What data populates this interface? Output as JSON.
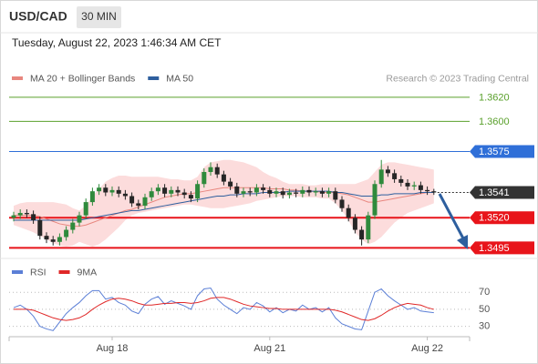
{
  "header": {
    "symbol": "USD/CAD",
    "interval": "30 MIN",
    "timestamp": "Tuesday, August 22, 2023 1:46:34 AM CET"
  },
  "chart_data": [
    {
      "type": "candlestick",
      "source": "Research © 2023 Trading Central",
      "ylim": [
        1.3487,
        1.3629
      ],
      "up_color": "#2f8a3c",
      "down_color": "#262626",
      "band_color": "#fcdcdc",
      "open": [
        1.352,
        1.3522,
        1.3524,
        1.3523,
        1.3518,
        1.3505,
        1.3502,
        1.35,
        1.3504,
        1.351,
        1.3516,
        1.3522,
        1.3533,
        1.3542,
        1.3545,
        1.3541,
        1.3543,
        1.354,
        1.3538,
        1.3532,
        1.353,
        1.3537,
        1.3542,
        1.3545,
        1.354,
        1.3543,
        1.3541,
        1.3539,
        1.3536,
        1.3548,
        1.3558,
        1.3562,
        1.3556,
        1.355,
        1.3546,
        1.354,
        1.3542,
        1.3541,
        1.3545,
        1.3543,
        1.354,
        1.3542,
        1.3539,
        1.3541,
        1.354,
        1.3543,
        1.3541,
        1.3542,
        1.354,
        1.3542,
        1.3535,
        1.3528,
        1.352,
        1.351,
        1.3502,
        1.3522,
        1.3548,
        1.356,
        1.3557,
        1.3552,
        1.3549,
        1.3546,
        1.3547,
        1.3543,
        1.3542
      ],
      "high": [
        1.3525,
        1.3527,
        1.3527,
        1.3526,
        1.3521,
        1.3508,
        1.3505,
        1.3507,
        1.3513,
        1.3519,
        1.3525,
        1.3536,
        1.3545,
        1.3548,
        1.3548,
        1.3546,
        1.3546,
        1.3543,
        1.3541,
        1.3535,
        1.354,
        1.3545,
        1.3548,
        1.3548,
        1.3546,
        1.3546,
        1.3544,
        1.3542,
        1.3551,
        1.3561,
        1.3566,
        1.3565,
        1.3559,
        1.3553,
        1.3549,
        1.3545,
        1.3545,
        1.3548,
        1.3548,
        1.3546,
        1.3545,
        1.3545,
        1.3544,
        1.3544,
        1.3546,
        1.3546,
        1.3545,
        1.3545,
        1.3545,
        1.3545,
        1.3538,
        1.3531,
        1.3523,
        1.3513,
        1.3525,
        1.3551,
        1.3568,
        1.3563,
        1.356,
        1.3555,
        1.3552,
        1.355,
        1.355,
        1.3546,
        1.3544
      ],
      "low": [
        1.3517,
        1.3519,
        1.352,
        1.3515,
        1.3502,
        1.3499,
        1.3497,
        1.3497,
        1.3501,
        1.3507,
        1.3513,
        1.3519,
        1.353,
        1.3539,
        1.3538,
        1.3538,
        1.3537,
        1.3535,
        1.3529,
        1.3527,
        1.3527,
        1.3534,
        1.3539,
        1.3537,
        1.3537,
        1.3538,
        1.3536,
        1.3533,
        1.3533,
        1.3545,
        1.3555,
        1.3553,
        1.3547,
        1.3543,
        1.3537,
        1.3537,
        1.3538,
        1.3538,
        1.354,
        1.3537,
        1.3537,
        1.3536,
        1.3536,
        1.3537,
        1.3537,
        1.3538,
        1.3538,
        1.3537,
        1.3537,
        1.3532,
        1.3525,
        1.3517,
        1.3507,
        1.3497,
        1.3499,
        1.3519,
        1.3545,
        1.3554,
        1.3549,
        1.3546,
        1.3543,
        1.3543,
        1.354,
        1.3539,
        1.3539
      ],
      "close": [
        1.3522,
        1.3524,
        1.3523,
        1.3518,
        1.3505,
        1.3502,
        1.35,
        1.3504,
        1.351,
        1.3516,
        1.3522,
        1.3533,
        1.3542,
        1.3545,
        1.3541,
        1.3543,
        1.354,
        1.3538,
        1.3532,
        1.353,
        1.3537,
        1.3542,
        1.3545,
        1.354,
        1.3543,
        1.3541,
        1.3539,
        1.3536,
        1.3548,
        1.3558,
        1.3562,
        1.3556,
        1.355,
        1.3546,
        1.354,
        1.3542,
        1.3541,
        1.3545,
        1.3543,
        1.354,
        1.3542,
        1.3539,
        1.3541,
        1.354,
        1.3543,
        1.3541,
        1.3542,
        1.354,
        1.3542,
        1.3535,
        1.3528,
        1.352,
        1.351,
        1.3502,
        1.3522,
        1.3548,
        1.356,
        1.3557,
        1.3552,
        1.3549,
        1.3546,
        1.3547,
        1.3543,
        1.3542,
        1.3541
      ],
      "series": [
        {
          "name": "MA 20 + Bollinger Bands",
          "color": "#e8877f",
          "values": [
            1.3522,
            1.3522,
            1.3522,
            1.3522,
            1.3521,
            1.3519,
            1.3517,
            1.3515,
            1.3514,
            1.3513,
            1.3513,
            1.3514,
            1.3516,
            1.3518,
            1.352,
            1.3522,
            1.3524,
            1.3526,
            1.3527,
            1.3529,
            1.3531,
            1.3533,
            1.3535,
            1.3537,
            1.3538,
            1.3539,
            1.354,
            1.354,
            1.3541,
            1.3542,
            1.3543,
            1.3544,
            1.3545,
            1.3545,
            1.3545,
            1.3545,
            1.3545,
            1.3545,
            1.3545,
            1.3544,
            1.3544,
            1.3544,
            1.3543,
            1.3543,
            1.3542,
            1.3542,
            1.3542,
            1.3541,
            1.3541,
            1.3541,
            1.354,
            1.3539,
            1.3537,
            1.3535,
            1.3533,
            1.3533,
            1.3534,
            1.3535,
            1.3536,
            1.3537,
            1.3538,
            1.3539,
            1.354,
            1.3541,
            1.3541
          ],
          "upper": [
            1.353,
            1.3532,
            1.3533,
            1.3533,
            1.3533,
            1.3533,
            1.3533,
            1.3532,
            1.3531,
            1.3528,
            1.3526,
            1.353,
            1.3538,
            1.3544,
            1.355,
            1.3553,
            1.3555,
            1.3555,
            1.3554,
            1.3554,
            1.3554,
            1.3554,
            1.3554,
            1.3553,
            1.3552,
            1.3552,
            1.3551,
            1.3551,
            1.3554,
            1.3562,
            1.3566,
            1.3567,
            1.3568,
            1.3568,
            1.3567,
            1.3566,
            1.3564,
            1.3562,
            1.3558,
            1.3555,
            1.3553,
            1.355,
            1.3548,
            1.3548,
            1.3548,
            1.3547,
            1.3547,
            1.3548,
            1.3548,
            1.3548,
            1.3548,
            1.3548,
            1.3548,
            1.355,
            1.3552,
            1.3558,
            1.3564,
            1.3566,
            1.3566,
            1.3565,
            1.3564,
            1.3563,
            1.3562,
            1.3561,
            1.356
          ],
          "lower": [
            1.3514,
            1.3512,
            1.351,
            1.3508,
            1.3505,
            1.3502,
            1.3499,
            1.3497,
            1.3496,
            1.3497,
            1.35,
            1.3498,
            1.3496,
            1.3498,
            1.3502,
            1.3507,
            1.3512,
            1.3518,
            1.3522,
            1.3524,
            1.3525,
            1.3526,
            1.3527,
            1.3528,
            1.3529,
            1.353,
            1.3531,
            1.3531,
            1.353,
            1.3529,
            1.3528,
            1.3528,
            1.3528,
            1.3529,
            1.353,
            1.3531,
            1.3532,
            1.3534,
            1.3535,
            1.3536,
            1.3537,
            1.3538,
            1.3538,
            1.3538,
            1.3537,
            1.3537,
            1.3537,
            1.3536,
            1.3536,
            1.3532,
            1.3526,
            1.3518,
            1.3508,
            1.3502,
            1.3498,
            1.35,
            1.3504,
            1.351,
            1.3516,
            1.352,
            1.3524,
            1.3526,
            1.3528,
            1.353,
            1.3532
          ]
        },
        {
          "name": "MA 50",
          "color": "#2e5f9e",
          "values": [
            1.3518,
            1.3518,
            1.3518,
            1.3518,
            1.3518,
            1.3518,
            1.3518,
            1.3518,
            1.3518,
            1.3518,
            1.3518,
            1.3519,
            1.352,
            1.3521,
            1.3522,
            1.3523,
            1.3524,
            1.3525,
            1.3526,
            1.3526,
            1.3527,
            1.3528,
            1.3529,
            1.353,
            1.3531,
            1.3532,
            1.3533,
            1.3534,
            1.3535,
            1.3536,
            1.3537,
            1.3538,
            1.3538,
            1.3539,
            1.3539,
            1.354,
            1.354,
            1.354,
            1.3541,
            1.3541,
            1.3541,
            1.3541,
            1.3542,
            1.3542,
            1.3542,
            1.3542,
            1.3542,
            1.3542,
            1.3542,
            1.3541,
            1.3541,
            1.354,
            1.3539,
            1.3538,
            1.3538,
            1.3538,
            1.3539,
            1.3539,
            1.354,
            1.354,
            1.354,
            1.354,
            1.3541,
            1.3541,
            1.3541
          ]
        }
      ],
      "levels": [
        {
          "value": 1.362,
          "label": "1.3620",
          "color": "#5aa02c",
          "line": "solid"
        },
        {
          "value": 1.36,
          "label": "1.3600",
          "color": "#5aa02c",
          "line": "solid"
        },
        {
          "value": 1.3575,
          "label": "1.3575",
          "color": "#2f6fd8",
          "line": "solid",
          "tag_fill": "#2f6fd8"
        },
        {
          "value": 1.3541,
          "label": "1.3541",
          "color": "#333333",
          "line": "dotted",
          "tag_fill": "#333333"
        },
        {
          "value": 1.352,
          "label": "1.3520",
          "color": "#e8141a",
          "line": "thick",
          "tag_fill": "#e8141a"
        },
        {
          "value": 1.3495,
          "label": "1.3495",
          "color": "#e8141a",
          "line": "thick",
          "tag_fill": "#e8141a"
        }
      ]
    },
    {
      "type": "line",
      "ylim": [
        20,
        82
      ],
      "yticks": [
        30,
        50,
        70
      ],
      "grid": true,
      "categories": [
        null,
        null,
        null,
        null,
        null,
        null,
        null,
        null,
        null,
        null,
        null,
        null,
        null,
        null,
        null,
        "Aug 18",
        null,
        null,
        null,
        null,
        null,
        null,
        null,
        null,
        null,
        null,
        null,
        null,
        null,
        null,
        null,
        null,
        null,
        null,
        null,
        null,
        null,
        null,
        null,
        "Aug 21",
        null,
        null,
        null,
        null,
        null,
        null,
        null,
        null,
        null,
        null,
        null,
        null,
        null,
        null,
        null,
        null,
        null,
        null,
        null,
        null,
        null,
        null,
        null,
        "Aug 22",
        null
      ],
      "series": [
        {
          "name": "RSI",
          "color": "#5b7fd6",
          "values": [
            52,
            55,
            50,
            42,
            30,
            27,
            25,
            35,
            45,
            52,
            58,
            66,
            72,
            72,
            62,
            64,
            58,
            55,
            48,
            45,
            56,
            62,
            65,
            56,
            60,
            57,
            54,
            50,
            66,
            74,
            75,
            62,
            55,
            50,
            45,
            52,
            50,
            58,
            54,
            47,
            52,
            46,
            50,
            48,
            55,
            50,
            52,
            47,
            52,
            40,
            33,
            30,
            27,
            26,
            48,
            70,
            74,
            66,
            60,
            55,
            50,
            52,
            48,
            47,
            46
          ]
        },
        {
          "name": "9MA",
          "color": "#e02828",
          "values": [
            50,
            50,
            50,
            49,
            46,
            43,
            40,
            38,
            37,
            38,
            40,
            44,
            50,
            55,
            59,
            62,
            63,
            62,
            60,
            57,
            55,
            55,
            56,
            57,
            57,
            58,
            58,
            57,
            58,
            60,
            63,
            64,
            64,
            62,
            59,
            56,
            54,
            53,
            52,
            51,
            51,
            50,
            50,
            50,
            50,
            50,
            50,
            50,
            50,
            49,
            47,
            44,
            41,
            38,
            37,
            39,
            43,
            48,
            52,
            55,
            57,
            56,
            55,
            52,
            50
          ]
        }
      ]
    }
  ]
}
